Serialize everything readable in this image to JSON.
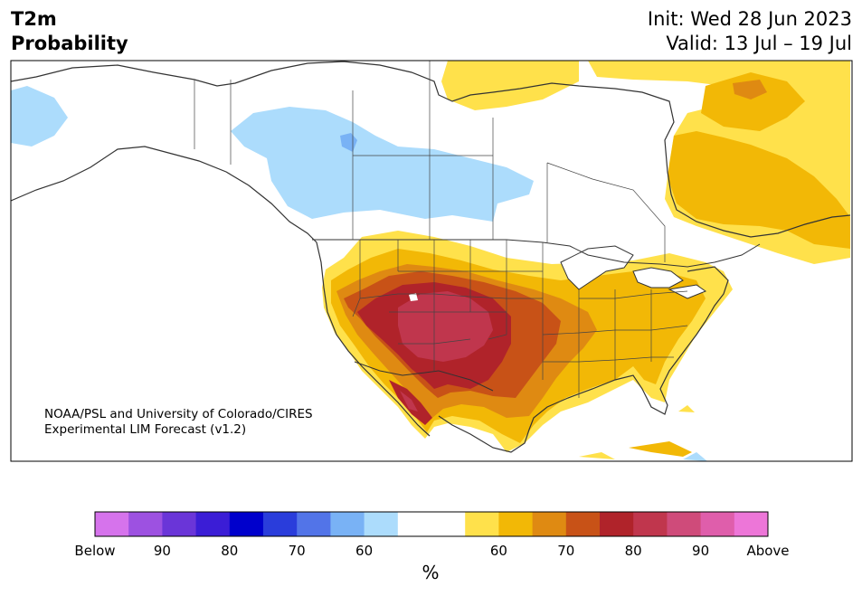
{
  "title": {
    "variable": "T2m",
    "subtitle": "Probability",
    "init": "Init: Wed 28 Jun 2023",
    "valid": "Valid: 13 Jul – 19 Jul"
  },
  "credit": {
    "line1": "NOAA/PSL and University of Colorado/CIRES",
    "line2": "Experimental LIM Forecast (v1.2)"
  },
  "colorbar": {
    "unit": "%",
    "below_colors": [
      "#d673ec",
      "#9d51e1",
      "#6a35d8",
      "#3b1dd6",
      "#0000cc",
      "#2a3ddb",
      "#5274e8",
      "#79b2f5",
      "#acdcfc"
    ],
    "neutral_color": "#ffffff",
    "above_colors": [
      "#ffe14b",
      "#f2b806",
      "#df8a12",
      "#c85217",
      "#b0232a",
      "#c0364d",
      "#cf4b7a",
      "#df5eab",
      "#ed76d8"
    ],
    "tick_labels": [
      "Below",
      "90",
      "80",
      "70",
      "60",
      "60",
      "70",
      "80",
      "90",
      "Above"
    ]
  },
  "map_layers": {
    "land_outline_color": "#333333",
    "state_border_color": "#444444"
  }
}
